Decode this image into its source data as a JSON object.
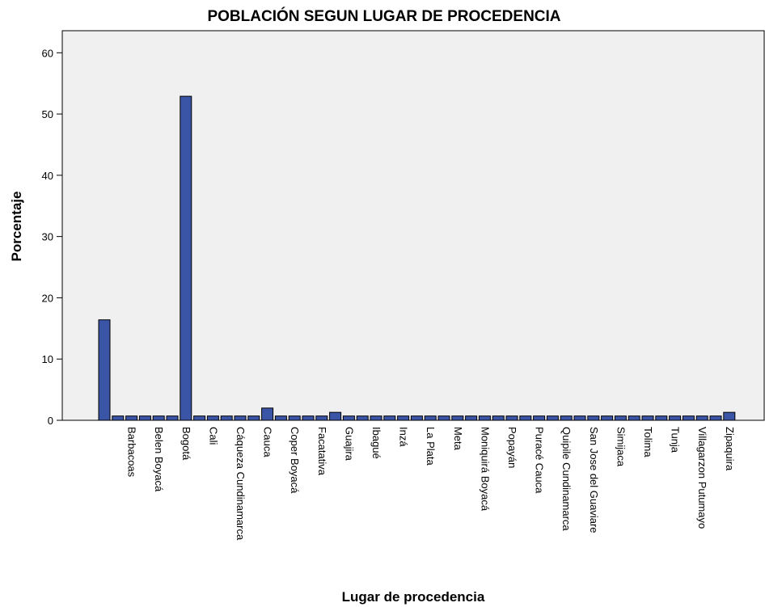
{
  "chart_data": {
    "type": "bar",
    "title": "POBLACIÓN SEGUN LUGAR DE PROCEDENCIA",
    "x_label": "Lugar de procedencia",
    "y_label": "Porcentaje",
    "categories": [
      null,
      null,
      "Barbacoas",
      null,
      "Belen Boyacá",
      null,
      "Bogotá",
      null,
      "Cali",
      null,
      "Cáqueza Cundinamarca",
      null,
      "Cauca",
      null,
      "Coper Boyacá",
      null,
      "Facatativa",
      null,
      "Guajira",
      null,
      "Ibagué",
      null,
      "Inzá",
      null,
      "La Plata",
      null,
      "Meta",
      null,
      "Moniquirá Boyacá",
      null,
      "Popayán",
      null,
      "Puracé Cauca",
      null,
      "Quipile Cundinamarca",
      null,
      "San Jose del Guaviare",
      null,
      "Simijaca",
      null,
      "Tolima",
      null,
      "Tunja",
      null,
      "Villagarzon Putumayo",
      null,
      "Zipaquira"
    ],
    "values": [
      16.4,
      0.7,
      0.7,
      0.7,
      0.7,
      0.7,
      52.9,
      0.7,
      0.7,
      0.7,
      0.7,
      0.7,
      2.0,
      0.7,
      0.7,
      0.7,
      0.7,
      1.3,
      0.7,
      0.7,
      0.7,
      0.7,
      0.7,
      0.7,
      0.7,
      0.7,
      0.7,
      0.7,
      0.7,
      0.7,
      0.7,
      0.7,
      0.7,
      0.7,
      0.7,
      0.7,
      0.7,
      0.7,
      0.7,
      0.7,
      0.7,
      0.7,
      0.7,
      0.7,
      0.7,
      0.7,
      1.3
    ],
    "color": "#3b55a6",
    "ylim": [
      0,
      63.6
    ],
    "yticks": [
      0,
      10,
      20,
      30,
      40,
      50,
      60
    ],
    "grid": false
  }
}
